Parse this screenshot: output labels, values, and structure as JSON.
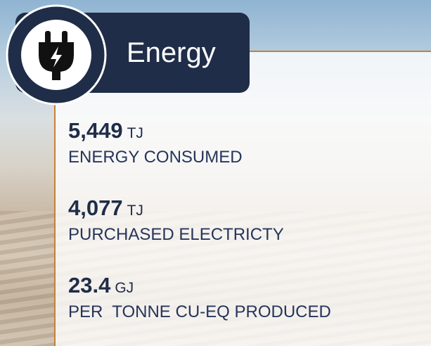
{
  "header": {
    "title": "Energy"
  },
  "items": [
    {
      "value": "5,449",
      "unit": "TJ",
      "label": "ENERGY CONSUMED"
    },
    {
      "value": "4,077",
      "unit": "TJ",
      "label": "PURCHASED ELECTRICTY"
    },
    {
      "value": "23.4",
      "unit": "GJ",
      "label": "PER  TONNE CU-EQ PRODUCED"
    }
  ]
}
